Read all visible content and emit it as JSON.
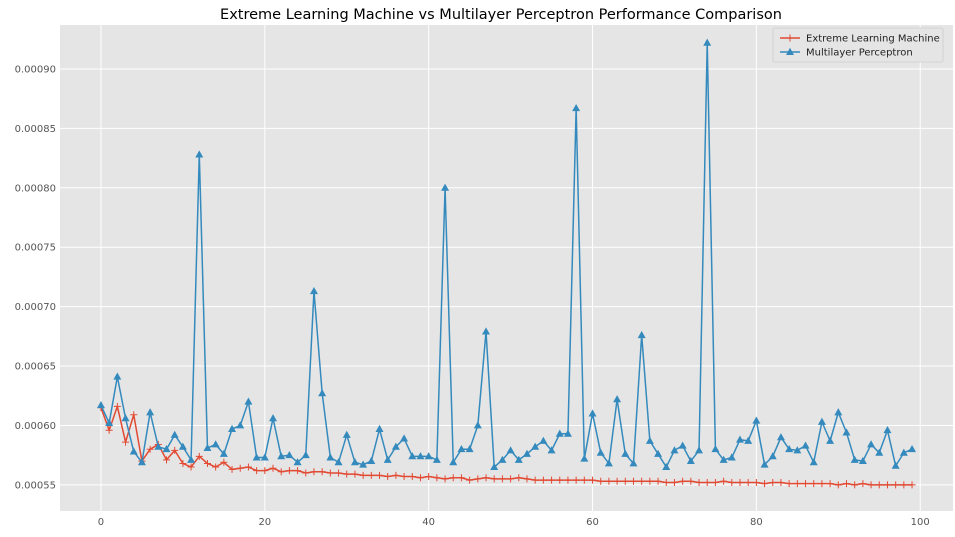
{
  "chart_data": {
    "type": "line",
    "title": "Extreme Learning Machine vs Multilayer Perceptron Performance Comparison",
    "xlabel": "",
    "ylabel": "",
    "xlim": [
      -5,
      104
    ],
    "ylim": [
      0.000528,
      0.000937
    ],
    "x_ticks": [
      0,
      20,
      40,
      60,
      80,
      100
    ],
    "y_ticks": [
      0.00055,
      0.0006,
      0.00065,
      0.0007,
      0.00075,
      0.0008,
      0.00085,
      0.0009
    ],
    "x_tick_labels": [
      "0",
      "20",
      "40",
      "60",
      "80",
      "100"
    ],
    "y_tick_labels": [
      "0.00055",
      "0.00060",
      "0.00065",
      "0.00070",
      "0.00075",
      "0.00080",
      "0.00085",
      "0.00090"
    ],
    "grid": true,
    "legend_position": "top-right",
    "series": [
      {
        "name": "Extreme Learning Machine",
        "color": "#E24A33",
        "marker": "plus",
        "values": [
          0.000615,
          0.000596,
          0.000616,
          0.000586,
          0.000609,
          0.00057,
          0.00058,
          0.000584,
          0.000571,
          0.000579,
          0.000568,
          0.000565,
          0.000574,
          0.000568,
          0.000565,
          0.000569,
          0.000563,
          0.000564,
          0.000565,
          0.000562,
          0.000562,
          0.000564,
          0.000561,
          0.000562,
          0.000562,
          0.00056,
          0.000561,
          0.000561,
          0.00056,
          0.00056,
          0.000559,
          0.000559,
          0.000558,
          0.000558,
          0.000558,
          0.000557,
          0.000558,
          0.000557,
          0.000557,
          0.000556,
          0.000557,
          0.000556,
          0.000555,
          0.000556,
          0.000556,
          0.000554,
          0.000555,
          0.000556,
          0.000555,
          0.000555,
          0.000555,
          0.000556,
          0.000555,
          0.000554,
          0.000554,
          0.000554,
          0.000554,
          0.000554,
          0.000554,
          0.000554,
          0.000554,
          0.000553,
          0.000553,
          0.000553,
          0.000553,
          0.000553,
          0.000553,
          0.000553,
          0.000553,
          0.000552,
          0.000552,
          0.000553,
          0.000553,
          0.000552,
          0.000552,
          0.000552,
          0.000553,
          0.000552,
          0.000552,
          0.000552,
          0.000552,
          0.000551,
          0.000552,
          0.000552,
          0.000551,
          0.000551,
          0.000551,
          0.000551,
          0.000551,
          0.000551,
          0.00055,
          0.000551,
          0.00055,
          0.000551,
          0.00055,
          0.00055,
          0.00055,
          0.00055,
          0.00055,
          0.00055
        ]
      },
      {
        "name": "Multilayer Perceptron",
        "color": "#348ABD",
        "marker": "triangle",
        "values": [
          0.000617,
          0.000602,
          0.000641,
          0.000606,
          0.000578,
          0.000569,
          0.000611,
          0.000582,
          0.00058,
          0.000592,
          0.000582,
          0.000571,
          0.000828,
          0.000581,
          0.000584,
          0.000576,
          0.000597,
          0.0006,
          0.00062,
          0.000573,
          0.000573,
          0.000606,
          0.000574,
          0.000575,
          0.000569,
          0.000575,
          0.000713,
          0.000627,
          0.000573,
          0.000569,
          0.000592,
          0.000569,
          0.000567,
          0.00057,
          0.000597,
          0.000571,
          0.000582,
          0.000589,
          0.000574,
          0.000574,
          0.000574,
          0.000571,
          0.0008,
          0.000569,
          0.00058,
          0.00058,
          0.0006,
          0.000679,
          0.000565,
          0.000571,
          0.000579,
          0.000571,
          0.000576,
          0.000582,
          0.000587,
          0.000579,
          0.000593,
          0.000593,
          0.000867,
          0.000572,
          0.00061,
          0.000577,
          0.000568,
          0.000622,
          0.000576,
          0.000568,
          0.000676,
          0.000587,
          0.000576,
          0.000565,
          0.000579,
          0.000583,
          0.00057,
          0.000579,
          0.000922,
          0.00058,
          0.000571,
          0.000573,
          0.000588,
          0.000587,
          0.000604,
          0.000567,
          0.000574,
          0.00059,
          0.00058,
          0.000579,
          0.000583,
          0.000569,
          0.000603,
          0.000587,
          0.000611,
          0.000594,
          0.000571,
          0.00057,
          0.000584,
          0.000577,
          0.000596,
          0.000566,
          0.000577,
          0.00058
        ]
      }
    ]
  }
}
